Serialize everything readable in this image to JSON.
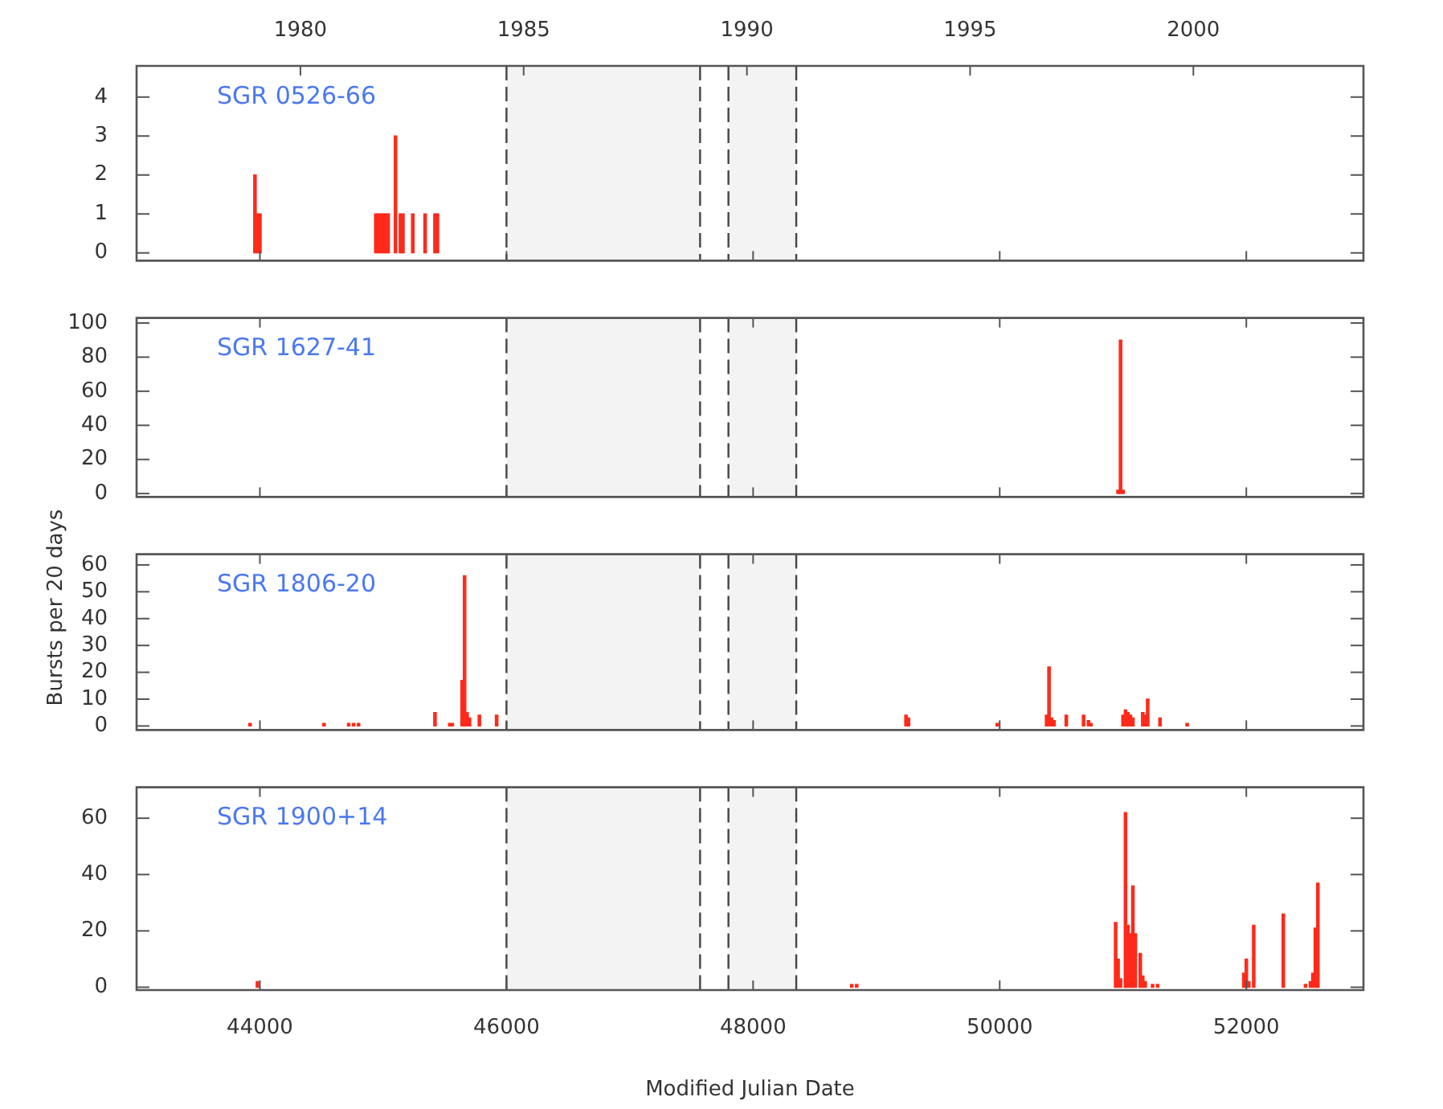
{
  "chart_data": [
    {
      "type": "bar",
      "annotations": [
        "SGR 0526-66"
      ],
      "color": "#ff2a1a",
      "x": [
        43960,
        43980,
        44000,
        44940,
        44960,
        44980,
        45000,
        45020,
        45040,
        45100,
        45140,
        45160,
        45240,
        45340,
        45420,
        45440
      ],
      "values": [
        2,
        1,
        1,
        1,
        1,
        1,
        1,
        1,
        1,
        3,
        1,
        1,
        1,
        1,
        1,
        1
      ],
      "xlim": [
        43000,
        52950
      ],
      "xticks": [
        44000,
        46000,
        48000,
        50000,
        52000
      ],
      "x2lim": [
        1976.33,
        2003.81
      ],
      "x2ticks": [
        1980,
        1985,
        1990,
        1995,
        2000
      ],
      "ylim": [
        -0.2,
        4.8
      ],
      "yticks": [
        0,
        1,
        2,
        3,
        4
      ],
      "tick_labels": "y",
      "bands": [
        {
          "axis": "x",
          "from": 46000,
          "to": 47570,
          "color": "#f3f3f3"
        },
        {
          "axis": "x",
          "from": 47800,
          "to": 48350,
          "color": "#f3f3f3"
        }
      ]
    },
    {
      "type": "bar",
      "annotations": [
        "SGR 1627-41"
      ],
      "color": "#ff2a1a",
      "x": [
        50960,
        50980,
        51000
      ],
      "values": [
        2,
        90,
        2
      ],
      "xlim": [
        43000,
        52950
      ],
      "xticks": [
        44000,
        46000,
        48000,
        50000,
        52000
      ],
      "ylim": [
        -2,
        103
      ],
      "yticks": [
        0,
        20,
        40,
        60,
        80,
        100
      ],
      "tick_labels": "y",
      "bands": [
        {
          "axis": "x",
          "from": 46000,
          "to": 47570,
          "color": "#f3f3f3"
        },
        {
          "axis": "x",
          "from": 47800,
          "to": 48350,
          "color": "#f3f3f3"
        }
      ]
    },
    {
      "type": "bar",
      "annotations": [
        "SGR 1806-20"
      ],
      "color": "#ff2a1a",
      "ylabel": "Bursts per 20 days",
      "x": [
        43920,
        44520,
        44720,
        44760,
        44800,
        45420,
        45540,
        45560,
        45640,
        45660,
        45680,
        45700,
        45780,
        45920,
        49240,
        49260,
        49980,
        50380,
        50400,
        50420,
        50440,
        50540,
        50680,
        50720,
        50740,
        51000,
        51020,
        51040,
        51060,
        51080,
        51160,
        51180,
        51200,
        51300,
        51520
      ],
      "values": [
        1,
        1,
        1,
        1,
        1,
        5,
        1,
        1,
        17,
        56,
        5,
        3,
        4,
        4,
        4,
        3,
        1,
        4,
        22,
        3,
        2,
        4,
        4,
        2,
        1,
        4,
        6,
        5,
        4,
        3,
        5,
        4,
        10,
        3,
        1
      ],
      "xlim": [
        43000,
        52950
      ],
      "xticks": [
        44000,
        46000,
        48000,
        50000,
        52000
      ],
      "ylim": [
        -1.5,
        64
      ],
      "yticks": [
        0,
        10,
        20,
        30,
        40,
        50,
        60
      ],
      "tick_labels": "y",
      "bands": [
        {
          "axis": "x",
          "from": 46000,
          "to": 47570,
          "color": "#f3f3f3"
        },
        {
          "axis": "x",
          "from": 47800,
          "to": 48350,
          "color": "#f3f3f3"
        }
      ]
    },
    {
      "type": "bar",
      "annotations": [
        "SGR 1900+14"
      ],
      "color": "#ff2a1a",
      "xlabel": "Modified Julian Date",
      "x": [
        43980,
        48800,
        48840,
        50940,
        50960,
        50980,
        51020,
        51040,
        51060,
        51080,
        51100,
        51140,
        51160,
        51180,
        51240,
        51280,
        51980,
        52000,
        52020,
        52060,
        52300,
        52480,
        52520,
        52540,
        52560,
        52580
      ],
      "values": [
        2,
        1,
        1,
        23,
        10,
        3,
        62,
        22,
        19,
        36,
        19,
        12,
        4,
        2,
        1,
        1,
        5,
        10,
        2,
        22,
        26,
        1,
        2,
        5,
        21,
        37
      ],
      "xlim": [
        43000,
        52950
      ],
      "xticks": [
        44000,
        46000,
        48000,
        50000,
        52000
      ],
      "ylim": [
        -1,
        71
      ],
      "yticks": [
        0,
        20,
        40,
        60
      ],
      "bands": [
        {
          "axis": "x",
          "from": 46000,
          "to": 47570,
          "color": "#f3f3f3"
        },
        {
          "axis": "x",
          "from": 47800,
          "to": 48350,
          "color": "#f3f3f3"
        }
      ]
    }
  ]
}
